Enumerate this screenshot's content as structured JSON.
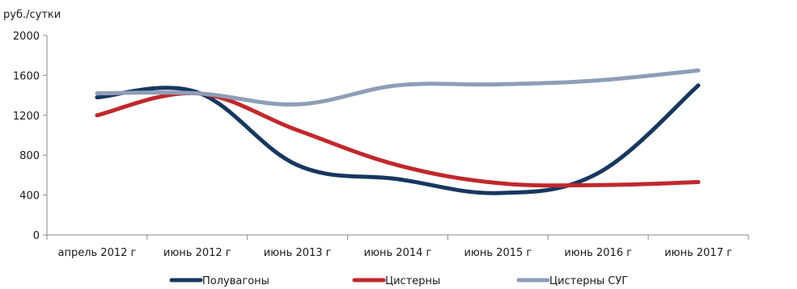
{
  "chart_data": {
    "type": "line",
    "title": "",
    "ylabel": "руб./сутки",
    "xlabel": "",
    "categories": [
      "апрель 2012 г",
      "июнь 2012 г",
      "июнь 2013 г",
      "июнь 2014 г",
      "июнь 2015 г",
      "июнь 2016 г",
      "июнь 2017 г"
    ],
    "ylim": [
      0,
      2000
    ],
    "yticks": [
      0,
      400,
      800,
      1200,
      1600,
      2000
    ],
    "grid": false,
    "legend_position": "bottom",
    "series": [
      {
        "name": "Полувагоны",
        "color": "#17375e",
        "values": [
          1380,
          1430,
          700,
          560,
          420,
          620,
          1500
        ]
      },
      {
        "name": "Цистерны",
        "color": "#c0282d",
        "values": [
          1200,
          1420,
          1050,
          700,
          520,
          500,
          530
        ]
      },
      {
        "name": "Цистерны СУГ",
        "color": "#8e9eb7",
        "values": [
          1420,
          1420,
          1310,
          1500,
          1510,
          1550,
          1650
        ]
      }
    ]
  }
}
